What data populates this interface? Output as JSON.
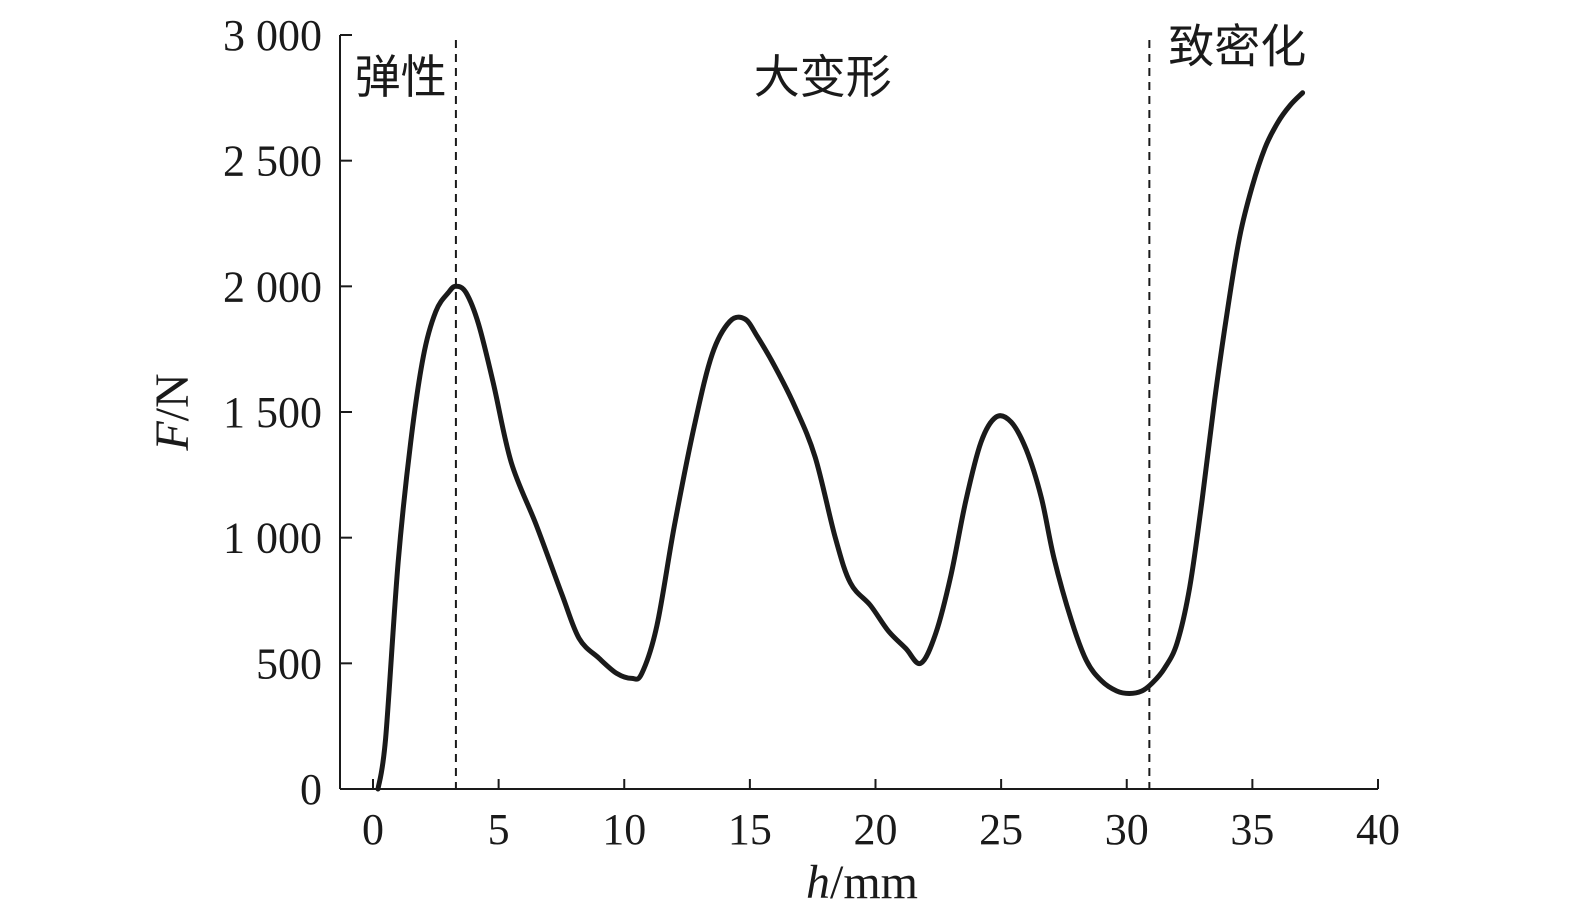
{
  "chart_data": {
    "type": "line",
    "title": "",
    "xlabel": {
      "italic": "h",
      "unit": "/mm"
    },
    "ylabel": {
      "italic": "F",
      "unit": "/N"
    },
    "xlim": [
      0,
      40
    ],
    "ylim": [
      0,
      3000
    ],
    "xticks": [
      0,
      5,
      10,
      15,
      20,
      25,
      30,
      35,
      40
    ],
    "xtick_labels": [
      "0",
      "5",
      "10",
      "15",
      "20",
      "25",
      "30",
      "35",
      "40"
    ],
    "yticks": [
      0,
      500,
      1000,
      1500,
      2000,
      2500,
      3000
    ],
    "ytick_labels": [
      "0",
      "500",
      "1 000",
      "1 500",
      "2 000",
      "2 500",
      "3 000"
    ],
    "grid": false,
    "series": [
      {
        "color": "#1a1a1a",
        "x": [
          0.2,
          0.5,
          1.0,
          1.5,
          2.0,
          2.5,
          3.0,
          3.3,
          3.7,
          4.2,
          4.8,
          5.5,
          6.5,
          7.5,
          8.2,
          9.0,
          9.7,
          10.3,
          10.7,
          11.3,
          12.0,
          12.8,
          13.5,
          14.2,
          14.8,
          15.3,
          16.0,
          16.8,
          17.6,
          18.4,
          19.0,
          19.8,
          20.5,
          21.2,
          21.8,
          22.4,
          23.0,
          23.6,
          24.2,
          24.8,
          25.4,
          26.0,
          26.6,
          27.1,
          27.8,
          28.4,
          29.0,
          29.6,
          30.1,
          30.6,
          31.0,
          31.5,
          32.0,
          32.5,
          33.0,
          33.5,
          34.0,
          34.5,
          35.0,
          35.5,
          36.0,
          36.5,
          37.0
        ],
        "y": [
          0,
          200,
          900,
          1380,
          1720,
          1900,
          1975,
          2000,
          1975,
          1850,
          1610,
          1300,
          1050,
          780,
          600,
          520,
          460,
          440,
          460,
          650,
          1050,
          1450,
          1730,
          1860,
          1870,
          1800,
          1680,
          1520,
          1320,
          1000,
          820,
          730,
          630,
          560,
          500,
          620,
          850,
          1150,
          1380,
          1480,
          1460,
          1350,
          1160,
          920,
          670,
          510,
          430,
          390,
          380,
          390,
          420,
          480,
          580,
          800,
          1150,
          1550,
          1900,
          2200,
          2400,
          2550,
          2650,
          2720,
          2770
        ]
      }
    ],
    "vlines": [
      3.3,
      30.9
    ],
    "annotations": [
      {
        "text": "弹性",
        "x": 1.1,
        "y": 2770
      },
      {
        "text": "大变形",
        "x": 17.9,
        "y": 2770
      },
      {
        "text": "致密化",
        "x": 34.4,
        "y": 2890
      }
    ]
  }
}
